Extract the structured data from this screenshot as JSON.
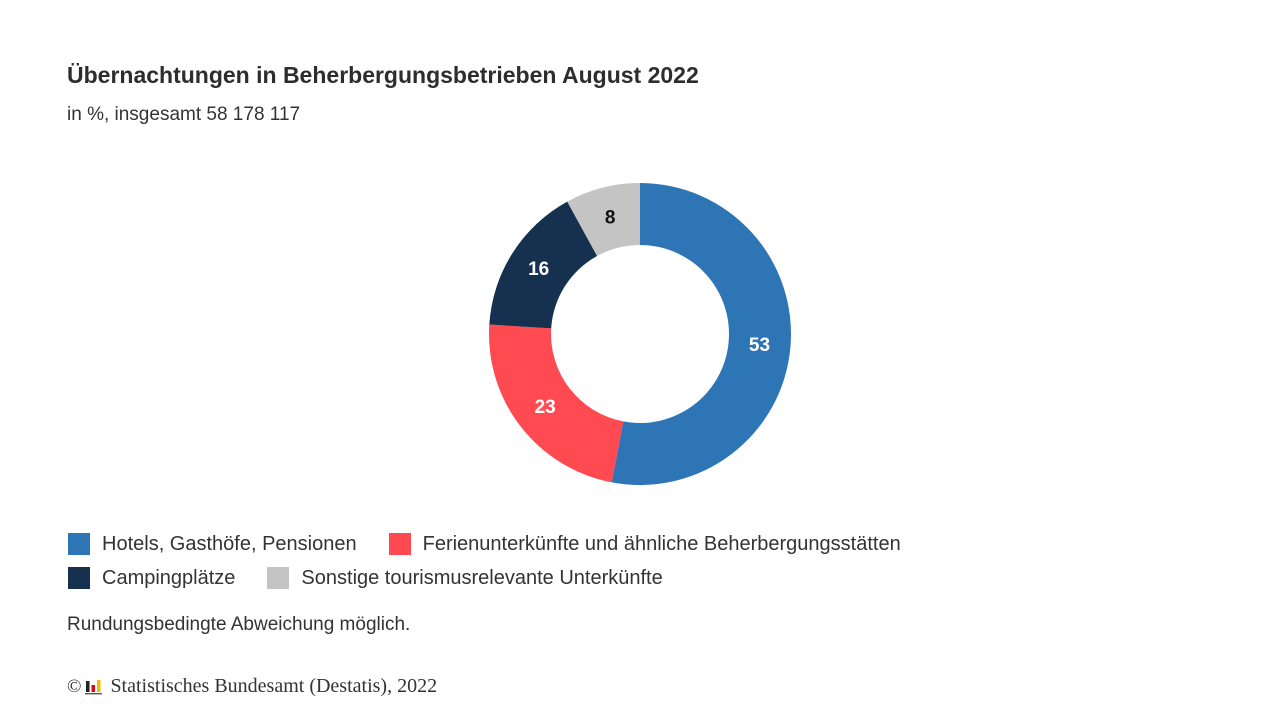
{
  "chart_data": {
    "type": "pie",
    "title": "Übernachtungen in Beherbergungsbetrieben August 2022",
    "subtitle": "in %, insgesamt 58 178 117",
    "categories": [
      "Hotels, Gasthöfe, Pensionen",
      "Ferienunterkünfte und ähnliche Beherbergungsstätten",
      "Campingplätze",
      "Sonstige tourismusrelevante Unterkünfte"
    ],
    "values": [
      53,
      23,
      16,
      8
    ],
    "value_labels": [
      "53",
      "23",
      "16",
      "8"
    ],
    "colors": [
      "#2e75b6",
      "#ff4a52",
      "#16304f",
      "#c4c4c4"
    ],
    "label_colors": [
      "#ffffff",
      "#ffffff",
      "#ffffff",
      "#111111"
    ],
    "legend_placement": "bottom",
    "donut": true
  },
  "legend_rows": [
    [
      0,
      1
    ],
    [
      2,
      3
    ]
  ],
  "note": "Rundungsbedingte Abweichung möglich.",
  "source": {
    "copyright_symbol": "©",
    "logo_icon": "destatis-logo-icon",
    "text": "Statistisches Bundesamt (Destatis), 2022"
  }
}
